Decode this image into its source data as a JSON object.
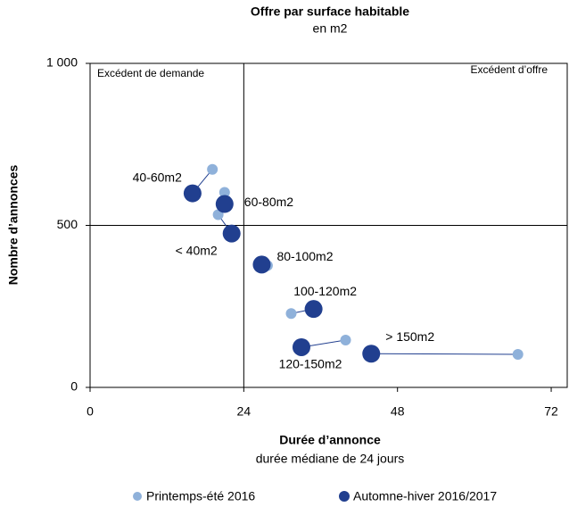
{
  "chart_data": {
    "type": "scatter",
    "title": "Offre par surface habitable",
    "subtitle": "en m2",
    "x_label": "Durée d’annonce",
    "x_sublabel": "durée médiane de 24 jours",
    "y_label": "Nombre d’annonces",
    "annotations": [
      "Excédent de demande",
      "Excédent d’offre"
    ],
    "reference_lines": {
      "x": 24,
      "y": 500
    },
    "xlim": [
      0,
      74.5
    ],
    "ylim": [
      0,
      1000
    ],
    "xticks": [
      0,
      24,
      48,
      72
    ],
    "yticks": [
      0,
      500,
      {
        "value": 1000,
        "label": "1 000"
      }
    ],
    "labels": [
      "40-60m2",
      "60-80m2",
      "< 40m2",
      "80-100m2",
      "100-120m2",
      "120-150m2",
      "> 150m2"
    ],
    "series": [
      {
        "name": "Printemps-été 2016",
        "color": "#8fb1da",
        "x": [
          19.1,
          21.0,
          20.0,
          27.7,
          31.4,
          39.9,
          66.8
        ],
        "values": [
          673,
          602,
          533,
          376,
          228,
          146,
          102
        ]
      },
      {
        "name": "Automne-hiver 2016/2017",
        "color": "#213f8f",
        "x": [
          16.0,
          21.0,
          22.1,
          26.8,
          34.9,
          33.0,
          43.9
        ],
        "values": [
          599,
          566,
          475,
          379,
          242,
          124,
          104
        ]
      }
    ]
  }
}
